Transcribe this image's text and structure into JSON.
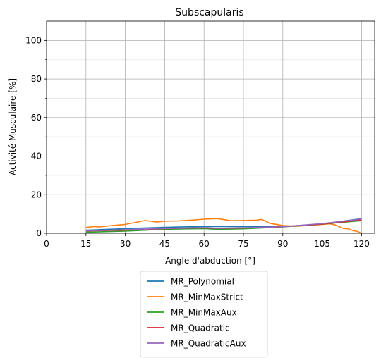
{
  "chart_data": {
    "type": "line",
    "title": "Subscapularis",
    "xlabel": "Angle d'abduction [°]",
    "ylabel": "Activité Musculaire [%]",
    "xlim": [
      0,
      125
    ],
    "ylim": [
      0,
      110
    ],
    "xticks": [
      0,
      15,
      30,
      45,
      60,
      75,
      90,
      105,
      120
    ],
    "yticks": [
      0,
      20,
      40,
      60,
      80,
      100
    ],
    "grid": true,
    "legend_position": "below",
    "series": [
      {
        "name": "MR_Polynomial",
        "color": "#1f77b4",
        "x": [
          15,
          30,
          45,
          60,
          75,
          90,
          105,
          120
        ],
        "y": [
          1.6,
          2.4,
          3.1,
          3.5,
          3.5,
          3.5,
          4.8,
          7.6
        ]
      },
      {
        "name": "MR_MinMaxStrict",
        "color": "#ff7f0e",
        "x": [
          15,
          18,
          20,
          25,
          30,
          35,
          37.5,
          40,
          42,
          45,
          50,
          55,
          60,
          65,
          68,
          70,
          75,
          80,
          82,
          85,
          90,
          95,
          100,
          105,
          108,
          110,
          113,
          115,
          117,
          118,
          120
        ],
        "y": [
          3.0,
          3.5,
          3.3,
          4.0,
          4.6,
          5.9,
          6.6,
          6.2,
          5.8,
          6.3,
          6.4,
          6.8,
          7.3,
          7.6,
          7.0,
          6.5,
          6.6,
          6.8,
          7.2,
          5.2,
          4.0,
          3.6,
          4.1,
          4.6,
          4.9,
          4.3,
          2.5,
          2.3,
          1.3,
          1.1,
          0.1
        ]
      },
      {
        "name": "MR_MinMaxAux",
        "color": "#2ca02c",
        "x": [
          15,
          30,
          45,
          60,
          65,
          75,
          90,
          105,
          120
        ],
        "y": [
          0.6,
          1.1,
          2.1,
          2.4,
          2.0,
          2.3,
          3.3,
          4.8,
          6.5
        ]
      },
      {
        "name": "MR_Quadratic",
        "color": "#d62728",
        "x": [
          15,
          30,
          45,
          60,
          65,
          75,
          90,
          105,
          120
        ],
        "y": [
          1.2,
          1.6,
          2.4,
          2.8,
          2.5,
          2.7,
          3.4,
          4.8,
          6.9
        ]
      },
      {
        "name": "MR_QuadraticAux",
        "color": "#9467bd",
        "x": [
          15,
          30,
          45,
          60,
          65,
          75,
          90,
          105,
          120
        ],
        "y": [
          1.3,
          1.8,
          2.5,
          2.9,
          2.6,
          2.8,
          3.4,
          5.0,
          7.4
        ]
      }
    ]
  }
}
